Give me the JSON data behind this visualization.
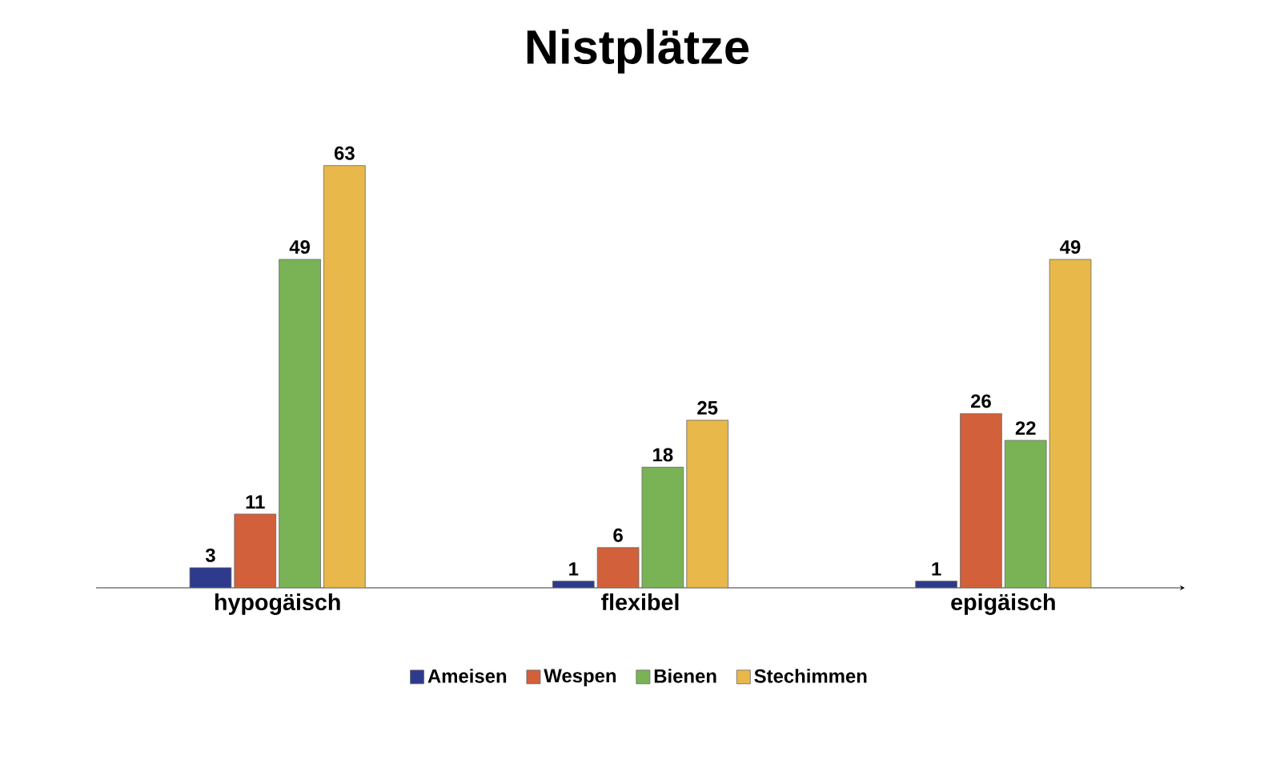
{
  "chart_data": {
    "type": "bar",
    "title": "Nistplätze",
    "categories": [
      "hypogäisch",
      "flexibel",
      "epigäisch"
    ],
    "series": [
      {
        "name": "Ameisen",
        "color": "#2e3a8c",
        "values": [
          3,
          1,
          1
        ]
      },
      {
        "name": "Wespen",
        "color": "#d2603a",
        "values": [
          11,
          6,
          26
        ]
      },
      {
        "name": "Bienen",
        "color": "#7ab356",
        "values": [
          49,
          18,
          22
        ]
      },
      {
        "name": "Stechimmen",
        "color": "#e8b84a",
        "values": [
          63,
          25,
          49
        ]
      }
    ],
    "data_labels": true,
    "legend": "bottom"
  }
}
